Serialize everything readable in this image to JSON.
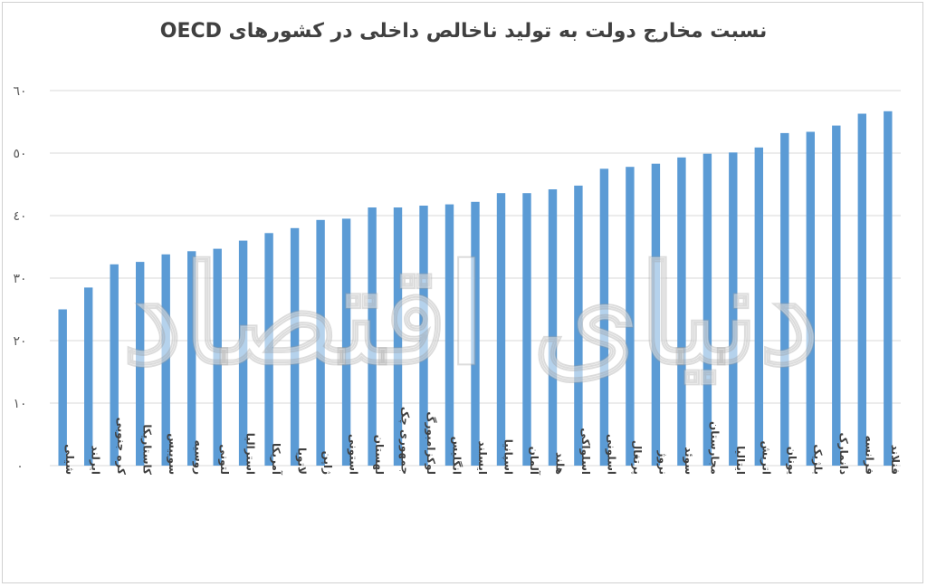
{
  "chart_data": {
    "type": "bar",
    "title": "نسبت مخارج دولت به تولید ناخالص داخلی در کشورهای OECD",
    "xlabel": "",
    "ylabel": "",
    "ylim": [
      0,
      60
    ],
    "yticks": [
      "٠",
      "١٠",
      "٢٠",
      "٣٠",
      "٤٠",
      "٥٠",
      "٦٠"
    ],
    "grid": true,
    "bar_color": "#5b9bd5",
    "categories": [
      "شیلی",
      "ایرلند",
      "کره جنوبی",
      "کاستاریکا",
      "سوییس",
      "روسیه",
      "لتونی",
      "استرالیا",
      "آمریکا",
      "لاتویا",
      "ژاپن",
      "استونی",
      "لهستان",
      "جمهوری چک",
      "لوکزامبورگ",
      "انگلیس",
      "ایسلند",
      "اسپانیا",
      "آلمان",
      "هلند",
      "اسلواکی",
      "اسلونی",
      "پرتغال",
      "نروژ",
      "سوئد",
      "مجارستان",
      "ایتالیا",
      "اتریش",
      "یونان",
      "بلژیک",
      "دانمارک",
      "فرانسه",
      "فنلاند"
    ],
    "values": [
      25,
      28.5,
      32.2,
      32.6,
      33.8,
      34.3,
      34.7,
      36,
      37.2,
      38,
      39.3,
      39.5,
      41.3,
      41.3,
      41.6,
      41.8,
      42.2,
      43.6,
      43.6,
      44.2,
      44.8,
      47.5,
      47.8,
      48.3,
      49.3,
      49.9,
      50.1,
      50.9,
      53.2,
      53.4,
      54.4,
      56.3,
      56.7
    ]
  },
  "watermark": "دنیای اقتصاد"
}
